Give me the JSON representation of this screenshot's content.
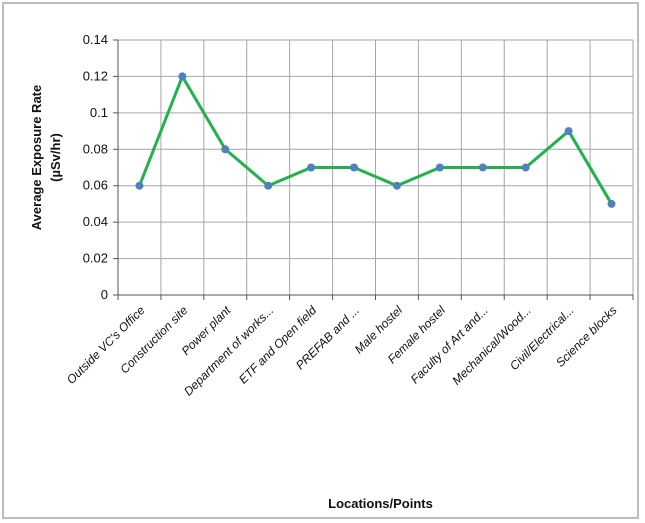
{
  "chart_data": {
    "type": "line",
    "title": "",
    "xlabel": "Locations/Points",
    "ylabel_line1": "Average Exposure Rate",
    "ylabel_line2": "(µSv/hr)",
    "ylim": [
      0,
      0.14
    ],
    "yticks": [
      "0",
      "0.02",
      "0.04",
      "0.06",
      "0.08",
      "0.1",
      "0.12",
      "0.14"
    ],
    "grid": true,
    "categories": [
      "Outside VC's Office",
      "Construction site",
      "Power plant",
      "Department of works...",
      "ETF and Open field",
      "PREFAB and ...",
      "Male hostel",
      "Female hostel",
      "Faculty of Art and...",
      "Mechanical/Wood...",
      "Civil/Electrical...",
      "Science blocks"
    ],
    "series": [
      {
        "values": [
          0.06,
          0.12,
          0.08,
          0.06,
          0.07,
          0.07,
          0.06,
          0.07,
          0.07,
          0.07,
          0.09,
          0.05
        ],
        "line_color": "#22b24c",
        "marker_color": "#4f81bd"
      }
    ]
  }
}
